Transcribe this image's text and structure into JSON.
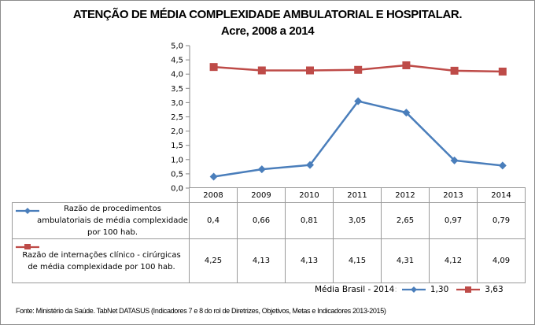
{
  "chart_data": {
    "type": "line",
    "title": "ATENÇÃO DE MÉDIA COMPLEXIDADE AMBULATORIAL E HOSPITALAR.",
    "subtitle": "Acre, 2008 a 2014",
    "xlabel": "",
    "ylabel": "",
    "categories": [
      "2008",
      "2009",
      "2010",
      "2011",
      "2012",
      "2013",
      "2014"
    ],
    "ylim": [
      0,
      5
    ],
    "ytick_step": 0.5,
    "yticks": [
      "0,0",
      "0,5",
      "1,0",
      "1,5",
      "2,0",
      "2,5",
      "3,0",
      "3,5",
      "4,0",
      "4,5",
      "5,0"
    ],
    "grid": false,
    "legend_placement": "data-table-left",
    "series": [
      {
        "name": "Razão de procedimentos ambulatoriais de média complexidade por 100 hab.",
        "values": [
          0.4,
          0.66,
          0.81,
          3.05,
          2.65,
          0.97,
          0.79
        ],
        "labels": [
          "0,4",
          "0,66",
          "0,81",
          "3,05",
          "2,65",
          "0,97",
          "0,79"
        ],
        "color": "#4a7ebb",
        "marker": "diamond"
      },
      {
        "name": "Razão de internações clínico - cirúrgicas de média complexidade por 100 hab.",
        "values": [
          4.25,
          4.13,
          4.13,
          4.15,
          4.31,
          4.12,
          4.09
        ],
        "labels": [
          "4,25",
          "4,13",
          "4,13",
          "4,15",
          "4,31",
          "4,12",
          "4,09"
        ],
        "color": "#be4b48",
        "marker": "square"
      }
    ]
  },
  "header": {
    "title_line1": "ATENÇÃO DE MÉDIA COMPLEXIDADE AMBULATORIAL E HOSPITALAR.",
    "title_line2": "Acre, 2008 a 2014"
  },
  "table": {
    "row1_label": "Razão de procedimentos ambulatoriais de média complexidade por 100 hab.",
    "row2_label": "Razão de internações clínico - cirúrgicas de média complexidade por 100 hab."
  },
  "brazil_average": {
    "label": "Média Brasil - 2014",
    "colon": ":",
    "series1_value": "1,30",
    "series2_value": "3,63"
  },
  "footer": {
    "source": "Fonte: Ministério da Saúde. TabNet DATASUS (Indicadores 7 e 8 do rol de Diretrizes, Objetivos, Metas e Indicadores 2013-2015)"
  }
}
